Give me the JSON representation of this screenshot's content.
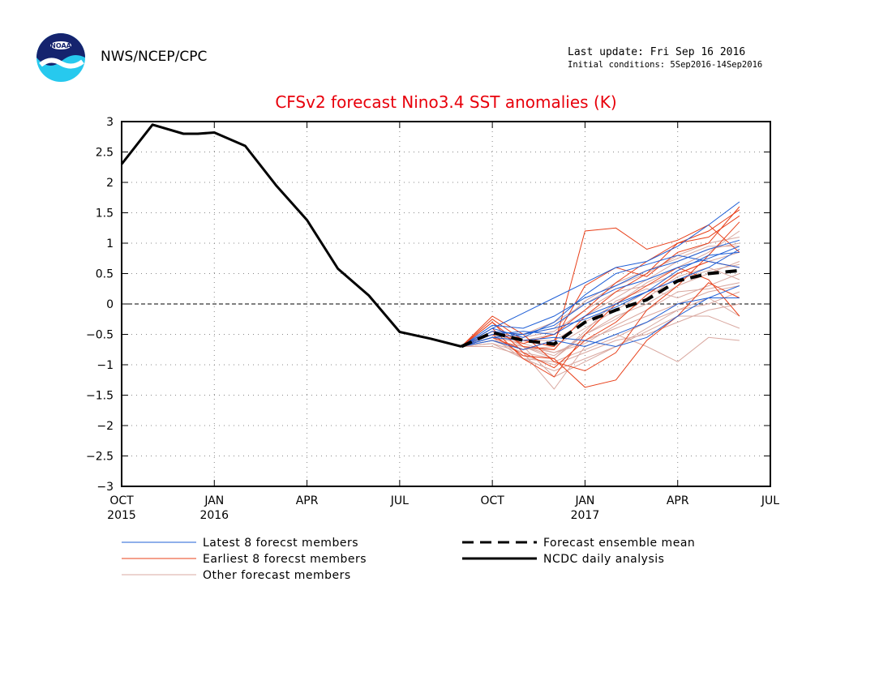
{
  "header": {
    "org": "NWS/NCEP/CPC",
    "last_update": "Last update: Fri Sep 16 2016",
    "initial_conditions": "Initial conditions: 5Sep2016-14Sep2016",
    "logo_text": "NOAA"
  },
  "chart_data": {
    "type": "line",
    "title": "CFSv2 forecast Nino3.4 SST anomalies (K)",
    "xlabel": "",
    "ylabel": "",
    "ylim": [
      -3,
      3
    ],
    "yticks": [
      3,
      2.5,
      2,
      1.5,
      1,
      0.5,
      0,
      -0.5,
      -1,
      -1.5,
      -2,
      -2.5,
      -3
    ],
    "ytick_labels": [
      "3",
      "2.5",
      "2",
      "1.5",
      "1",
      "0.5",
      "0",
      "−0.5",
      "−1",
      "−1.5",
      "−2",
      "−2.5",
      "−3"
    ],
    "x_range_months": [
      "2015-10",
      "2017-07"
    ],
    "xtick_labels": [
      {
        "month": "2015-10",
        "top": "OCT",
        "bottom": "2015"
      },
      {
        "month": "2016-01",
        "top": "JAN",
        "bottom": "2016"
      },
      {
        "month": "2016-04",
        "top": "APR",
        "bottom": ""
      },
      {
        "month": "2016-07",
        "top": "JUL",
        "bottom": ""
      },
      {
        "month": "2016-10",
        "top": "OCT",
        "bottom": ""
      },
      {
        "month": "2017-01",
        "top": "JAN",
        "bottom": "2017"
      },
      {
        "month": "2017-04",
        "top": "APR",
        "bottom": ""
      },
      {
        "month": "2017-07",
        "top": "JUL",
        "bottom": ""
      }
    ],
    "grid": true,
    "zero_line": true,
    "colors": {
      "latest": "#1f5fd6",
      "earliest": "#e8401a",
      "other": "#d9a8a0",
      "mean": "#000000",
      "analysis": "#000000"
    },
    "legend": [
      {
        "label": "Latest 8 forecst members",
        "style": "latest"
      },
      {
        "label": "Earliest 8 forecst members",
        "style": "earliest"
      },
      {
        "label": "Other forecast members",
        "style": "other"
      },
      {
        "label": "Forecast ensemble mean",
        "style": "mean"
      },
      {
        "label": "NCDC daily analysis",
        "style": "analysis"
      }
    ],
    "analysis": {
      "x": [
        "2015-10",
        "2015-11",
        "2015-12",
        "2015-12-15",
        "2016-01",
        "2016-02",
        "2016-03",
        "2016-04",
        "2016-05",
        "2016-06",
        "2016-07",
        "2016-08",
        "2016-09"
      ],
      "values": [
        2.3,
        2.95,
        2.8,
        2.8,
        2.82,
        2.6,
        1.95,
        1.38,
        0.58,
        0.14,
        -0.46,
        -0.57,
        -0.7
      ]
    },
    "forecast_months": [
      "2016-09",
      "2016-10",
      "2016-11",
      "2016-12",
      "2017-01",
      "2017-02",
      "2017-03",
      "2017-04",
      "2017-05",
      "2017-06"
    ],
    "ensemble_mean": [
      -0.7,
      -0.47,
      -0.6,
      -0.66,
      -0.3,
      -0.1,
      0.07,
      0.38,
      0.5,
      0.55
    ],
    "latest_members": [
      [
        -0.7,
        -0.4,
        -0.15,
        0.1,
        0.35,
        0.6,
        0.7,
        0.95,
        1.3,
        1.68
      ],
      [
        -0.7,
        -0.55,
        -0.6,
        -0.55,
        -0.6,
        -0.7,
        -0.55,
        -0.2,
        0.1,
        0.3
      ],
      [
        -0.7,
        -0.45,
        -0.5,
        -0.35,
        0.0,
        0.25,
        0.4,
        0.6,
        0.75,
        0.95
      ],
      [
        -0.7,
        -0.6,
        -0.75,
        -0.6,
        -0.7,
        -0.5,
        -0.3,
        0.0,
        0.1,
        0.1
      ],
      [
        -0.7,
        -0.35,
        -0.4,
        -0.2,
        0.1,
        0.3,
        0.55,
        0.7,
        0.9,
        1.05
      ],
      [
        -0.7,
        -0.5,
        -0.45,
        -0.5,
        -0.2,
        0.0,
        0.2,
        0.4,
        0.6,
        0.9
      ],
      [
        -0.7,
        -0.4,
        -0.55,
        -0.3,
        0.15,
        0.5,
        0.65,
        0.8,
        0.7,
        0.6
      ],
      [
        -0.7,
        -0.55,
        -0.5,
        -0.4,
        -0.25,
        -0.05,
        0.2,
        0.55,
        0.8,
        0.85
      ]
    ],
    "earliest_members": [
      [
        -0.7,
        -0.25,
        -0.6,
        -0.7,
        1.2,
        1.25,
        0.9,
        1.05,
        1.3,
        0.85
      ],
      [
        -0.7,
        -0.5,
        -0.85,
        -0.9,
        -1.37,
        -1.25,
        -0.6,
        -0.2,
        0.35,
        0.1
      ],
      [
        -0.7,
        -0.3,
        -0.7,
        -0.75,
        -0.2,
        0.2,
        0.5,
        1.0,
        1.2,
        1.55
      ],
      [
        -0.7,
        -0.2,
        -0.5,
        -0.95,
        -1.1,
        -0.8,
        -0.1,
        0.3,
        0.8,
        1.35
      ],
      [
        -0.7,
        -0.4,
        -0.9,
        -1.2,
        -0.5,
        0.0,
        0.3,
        0.6,
        0.4,
        -0.2
      ],
      [
        -0.7,
        -0.45,
        -0.65,
        -0.5,
        -0.1,
        0.35,
        0.7,
        1.0,
        1.1,
        1.45
      ],
      [
        -0.7,
        -0.3,
        -0.8,
        -1.05,
        -0.6,
        -0.3,
        0.15,
        0.5,
        0.7,
        0.6
      ],
      [
        -0.7,
        -0.55,
        -0.75,
        -0.6,
        0.3,
        0.6,
        0.45,
        0.85,
        1.0,
        1.6
      ]
    ],
    "other_members": [
      [
        -0.7,
        -0.6,
        -0.7,
        -0.8,
        -0.6,
        -0.4,
        -0.2,
        0.0,
        0.2,
        0.3
      ],
      [
        -0.7,
        -0.55,
        -0.9,
        -1.1,
        -0.9,
        -0.7,
        -0.4,
        -0.1,
        0.1,
        -0.2
      ],
      [
        -0.7,
        -0.65,
        -0.8,
        -1.4,
        -0.7,
        -0.5,
        -0.7,
        -0.95,
        -0.55,
        -0.6
      ],
      [
        -0.7,
        -0.5,
        -0.6,
        -0.5,
        -0.2,
        0.1,
        0.4,
        0.7,
        0.9,
        1.0
      ],
      [
        -0.7,
        -0.6,
        -0.7,
        -0.9,
        -0.5,
        -0.2,
        0.0,
        0.3,
        0.5,
        0.7
      ],
      [
        -0.7,
        -0.45,
        -0.5,
        -0.3,
        0.0,
        0.3,
        0.5,
        0.8,
        1.0,
        1.1
      ],
      [
        -0.7,
        -0.7,
        -0.85,
        -1.0,
        -0.8,
        -0.6,
        -0.5,
        -0.3,
        -0.1,
        0.0
      ],
      [
        -0.7,
        -0.5,
        -0.55,
        -0.45,
        -0.1,
        0.2,
        0.3,
        0.5,
        0.7,
        0.85
      ],
      [
        -0.7,
        -0.6,
        -0.75,
        -0.7,
        -0.4,
        -0.1,
        0.2,
        0.4,
        0.55,
        0.65
      ],
      [
        -0.7,
        -0.55,
        -0.65,
        -0.8,
        -0.65,
        -0.35,
        -0.1,
        0.2,
        0.25,
        0.35
      ],
      [
        -0.7,
        -0.65,
        -0.9,
        -0.95,
        -0.75,
        -0.55,
        -0.3,
        -0.1,
        0.0,
        0.2
      ],
      [
        -0.7,
        -0.5,
        -0.6,
        -0.6,
        -0.3,
        0.0,
        0.35,
        0.6,
        0.85,
        1.2
      ],
      [
        -0.7,
        -0.6,
        -0.7,
        -1.2,
        -0.95,
        -0.7,
        -0.45,
        -0.2,
        -0.2,
        -0.4
      ],
      [
        -0.7,
        -0.55,
        -0.5,
        -0.4,
        0.05,
        0.35,
        0.55,
        0.75,
        0.95,
        0.95
      ],
      [
        -0.7,
        -0.45,
        -0.7,
        -0.85,
        -0.5,
        -0.25,
        0.1,
        0.45,
        0.6,
        0.4
      ],
      [
        -0.7,
        -0.6,
        -0.8,
        -0.9,
        -0.45,
        0.05,
        0.25,
        0.1,
        0.3,
        0.5
      ]
    ]
  }
}
